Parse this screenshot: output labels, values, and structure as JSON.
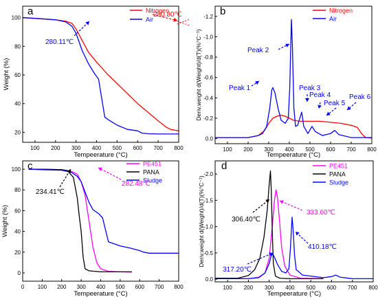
{
  "chart_data": [
    {
      "panel": "a",
      "type": "line",
      "xlabel": "Tempeerature (°C)",
      "ylabel": "Weight (%)",
      "xlim": [
        40,
        800
      ],
      "ylim": [
        13,
        108
      ],
      "xticks": [
        100,
        200,
        300,
        400,
        500,
        600,
        700,
        800
      ],
      "yticks": [
        20,
        40,
        60,
        80,
        100
      ],
      "legend": "top-right",
      "series": [
        {
          "name": "Nitrogen",
          "color": "#ff0000",
          "points": [
            [
              40,
              100
            ],
            [
              100,
              99.5
            ],
            [
              200,
              98.5
            ],
            [
              250,
              97.5
            ],
            [
              280,
              96
            ],
            [
              300,
              92
            ],
            [
              330,
              84
            ],
            [
              360,
              76
            ],
            [
              400,
              69
            ],
            [
              450,
              61
            ],
            [
              500,
              54
            ],
            [
              550,
              47
            ],
            [
              600,
              40
            ],
            [
              650,
              34
            ],
            [
              700,
              28
            ],
            [
              740,
              23.5
            ],
            [
              760,
              22
            ],
            [
              800,
              21
            ]
          ]
        },
        {
          "name": "Air",
          "color": "#0000ff",
          "points": [
            [
              40,
              100
            ],
            [
              100,
              99.5
            ],
            [
              200,
              98.5
            ],
            [
              250,
              97
            ],
            [
              280,
              94
            ],
            [
              300,
              89
            ],
            [
              330,
              77
            ],
            [
              360,
              68
            ],
            [
              390,
              61
            ],
            [
              410,
              57
            ],
            [
              420,
              48
            ],
            [
              440,
              30.5
            ],
            [
              460,
              28.5
            ],
            [
              500,
              25
            ],
            [
              550,
              22
            ],
            [
              600,
              21
            ],
            [
              620,
              19.5
            ],
            [
              650,
              19
            ],
            [
              700,
              18.8
            ],
            [
              800,
              18.8
            ]
          ]
        }
      ],
      "annotations": [
        {
          "text": "280.80℃",
          "color": "#ff0000"
        },
        {
          "text": "280.11℃",
          "color": "#0000ff"
        }
      ]
    },
    {
      "panel": "b",
      "type": "line",
      "xlabel": "Tempeerature (°C)",
      "ylabel": "Deriv.weight d(Weight)/d(T)(%°C⁻¹)",
      "xlim": [
        40,
        800
      ],
      "ylim": [
        0.05,
        -1.3
      ],
      "y_inverted": true,
      "xticks": [
        100,
        200,
        300,
        400,
        500,
        600,
        700,
        800
      ],
      "yticks": [
        0.0,
        -0.2,
        -0.4,
        -0.6,
        -0.8,
        -1.0,
        -1.2
      ],
      "legend": "top-right",
      "series": [
        {
          "name": "Nitrogen",
          "color": "#ff0000",
          "points": [
            [
              40,
              -0.01
            ],
            [
              200,
              -0.01
            ],
            [
              250,
              -0.03
            ],
            [
              280,
              -0.08
            ],
            [
              300,
              -0.15
            ],
            [
              320,
              -0.2
            ],
            [
              340,
              -0.22
            ],
            [
              360,
              -0.23
            ],
            [
              380,
              -0.22
            ],
            [
              400,
              -0.2
            ],
            [
              420,
              -0.18
            ],
            [
              450,
              -0.17
            ],
            [
              500,
              -0.17
            ],
            [
              550,
              -0.17
            ],
            [
              600,
              -0.16
            ],
            [
              650,
              -0.15
            ],
            [
              700,
              -0.13
            ],
            [
              730,
              -0.11
            ],
            [
              750,
              -0.05
            ],
            [
              770,
              -0.01
            ],
            [
              800,
              -0.005
            ]
          ]
        },
        {
          "name": "Air",
          "color": "#0000ff",
          "points": [
            [
              40,
              -0.01
            ],
            [
              200,
              -0.01
            ],
            [
              250,
              -0.03
            ],
            [
              270,
              -0.05
            ],
            [
              290,
              -0.12
            ],
            [
              305,
              -0.3
            ],
            [
              315,
              -0.48
            ],
            [
              320,
              -0.5
            ],
            [
              330,
              -0.45
            ],
            [
              345,
              -0.3
            ],
            [
              360,
              -0.18
            ],
            [
              380,
              -0.15
            ],
            [
              395,
              -0.2
            ],
            [
              402,
              -0.5
            ],
            [
              410,
              -1.17
            ],
            [
              415,
              -0.9
            ],
            [
              422,
              -0.3
            ],
            [
              430,
              -0.12
            ],
            [
              440,
              -0.13
            ],
            [
              460,
              -0.26
            ],
            [
              470,
              -0.12
            ],
            [
              490,
              -0.05
            ],
            [
              510,
              -0.12
            ],
            [
              525,
              -0.07
            ],
            [
              560,
              -0.03
            ],
            [
              600,
              -0.05
            ],
            [
              620,
              -0.08
            ],
            [
              640,
              -0.04
            ],
            [
              700,
              -0.01
            ],
            [
              800,
              -0.01
            ]
          ]
        }
      ],
      "annotations": [
        {
          "text": "Peak 1",
          "color": "#0000ff"
        },
        {
          "text": "Peak 2",
          "color": "#0000ff"
        },
        {
          "text": "Peak 3",
          "color": "#0000ff"
        },
        {
          "text": "Peak 4",
          "color": "#0000ff"
        },
        {
          "text": "Peak 5",
          "color": "#0000ff"
        },
        {
          "text": "Peak 6",
          "color": "#0000ff"
        }
      ]
    },
    {
      "panel": "c",
      "type": "line",
      "xlabel": "Tempeerature (°C)",
      "ylabel": "Weight (%)",
      "xlim": [
        0,
        800
      ],
      "ylim": [
        -8,
        108
      ],
      "xticks": [
        0,
        100,
        200,
        300,
        400,
        500,
        600,
        700,
        800
      ],
      "yticks": [
        0,
        20,
        40,
        60,
        80,
        100
      ],
      "legend": "top-right",
      "series": [
        {
          "name": "PE451",
          "color": "#ff00ff",
          "points": [
            [
              30,
              100
            ],
            [
              100,
              100
            ],
            [
              200,
              99.5
            ],
            [
              250,
              98
            ],
            [
              280,
              95
            ],
            [
              300,
              88
            ],
            [
              320,
              75
            ],
            [
              340,
              50
            ],
            [
              360,
              25
            ],
            [
              380,
              10
            ],
            [
              400,
              4
            ],
            [
              440,
              1.5
            ],
            [
              500,
              1
            ],
            [
              560,
              0.8
            ]
          ]
        },
        {
          "name": "PANA",
          "color": "#000000",
          "points": [
            [
              30,
              100
            ],
            [
              100,
              100
            ],
            [
              200,
              99.5
            ],
            [
              230,
              98.5
            ],
            [
              260,
              92
            ],
            [
              280,
              72
            ],
            [
              290,
              55
            ],
            [
              300,
              40
            ],
            [
              310,
              15
            ],
            [
              320,
              4
            ],
            [
              340,
              2
            ],
            [
              400,
              1
            ],
            [
              560,
              1
            ]
          ]
        },
        {
          "name": "Sludge",
          "color": "#0000ff",
          "points": [
            [
              30,
              100
            ],
            [
              100,
              99.5
            ],
            [
              200,
              99
            ],
            [
              250,
              97
            ],
            [
              280,
              93
            ],
            [
              300,
              88
            ],
            [
              320,
              78
            ],
            [
              340,
              68
            ],
            [
              360,
              61
            ],
            [
              390,
              57
            ],
            [
              410,
              53
            ],
            [
              420,
              45
            ],
            [
              440,
              30
            ],
            [
              470,
              28
            ],
            [
              500,
              26
            ],
            [
              550,
              24
            ],
            [
              600,
              21.5
            ],
            [
              620,
              20
            ],
            [
              650,
              19
            ],
            [
              800,
              19
            ]
          ]
        }
      ],
      "annotations": [
        {
          "text": "234.41℃",
          "color": "#000000"
        },
        {
          "text": "282.48℃",
          "color": "#ff00ff"
        }
      ]
    },
    {
      "panel": "d",
      "type": "line",
      "xlabel": "Tempeerature (°C)",
      "ylabel": "Deriv.weight d(Weight)/d(T)(%°C⁻¹)",
      "xlim": [
        40,
        800
      ],
      "ylim": [
        0.05,
        -2.25
      ],
      "y_inverted": true,
      "xticks": [
        100,
        200,
        300,
        400,
        500,
        600,
        700,
        800
      ],
      "yticks": [
        0.0,
        -0.5,
        -1.0,
        -1.5,
        -2.0
      ],
      "legend": "top-right",
      "series": [
        {
          "name": "PE451",
          "color": "#ff00ff",
          "points": [
            [
              40,
              -0.01
            ],
            [
              200,
              -0.01
            ],
            [
              250,
              -0.04
            ],
            [
              280,
              -0.12
            ],
            [
              300,
              -0.4
            ],
            [
              315,
              -1.0
            ],
            [
              325,
              -1.5
            ],
            [
              333,
              -1.7
            ],
            [
              340,
              -1.55
            ],
            [
              350,
              -1.1
            ],
            [
              360,
              -0.6
            ],
            [
              375,
              -0.25
            ],
            [
              400,
              -0.08
            ],
            [
              450,
              -0.02
            ],
            [
              560,
              -0.01
            ]
          ]
        },
        {
          "name": "PANA",
          "color": "#000000",
          "points": [
            [
              40,
              -0.02
            ],
            [
              150,
              -0.02
            ],
            [
              200,
              -0.07
            ],
            [
              230,
              -0.18
            ],
            [
              255,
              -0.4
            ],
            [
              275,
              -0.8
            ],
            [
              290,
              -1.3
            ],
            [
              300,
              -1.8
            ],
            [
              306,
              -2.06
            ],
            [
              310,
              -1.7
            ],
            [
              315,
              -0.9
            ],
            [
              320,
              -0.3
            ],
            [
              330,
              -0.06
            ],
            [
              350,
              -0.02
            ],
            [
              400,
              -0.01
            ],
            [
              560,
              -0.01
            ]
          ]
        },
        {
          "name": "Sludge",
          "color": "#0000ff",
          "points": [
            [
              40,
              -0.01
            ],
            [
              200,
              -0.01
            ],
            [
              250,
              -0.03
            ],
            [
              280,
              -0.12
            ],
            [
              300,
              -0.3
            ],
            [
              310,
              -0.45
            ],
            [
              317,
              -0.48
            ],
            [
              325,
              -0.42
            ],
            [
              340,
              -0.28
            ],
            [
              360,
              -0.15
            ],
            [
              380,
              -0.12
            ],
            [
              395,
              -0.2
            ],
            [
              402,
              -0.6
            ],
            [
              410,
              -1.18
            ],
            [
              415,
              -0.95
            ],
            [
              422,
              -0.45
            ],
            [
              430,
              -0.18
            ],
            [
              440,
              -0.15
            ],
            [
              460,
              -0.08
            ],
            [
              500,
              -0.06
            ],
            [
              560,
              -0.03
            ],
            [
              600,
              -0.05
            ],
            [
              620,
              -0.08
            ],
            [
              640,
              -0.04
            ],
            [
              700,
              -0.01
            ],
            [
              800,
              -0.01
            ]
          ]
        }
      ],
      "annotations": [
        {
          "text": "306.40℃",
          "color": "#000000"
        },
        {
          "text": "333.60℃",
          "color": "#ff00ff"
        },
        {
          "text": "410.18℃",
          "color": "#0000ff"
        },
        {
          "text": "317.20℃",
          "color": "#0000ff"
        }
      ]
    }
  ]
}
